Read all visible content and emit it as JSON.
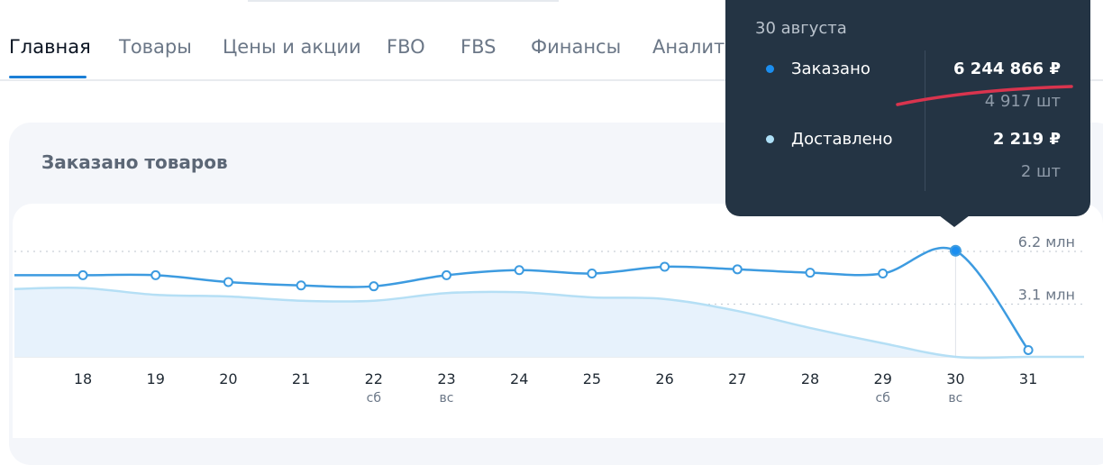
{
  "nav": {
    "tabs": [
      {
        "label": "Главная"
      },
      {
        "label": "Товары"
      },
      {
        "label": "Цены и акции"
      },
      {
        "label": "FBO"
      },
      {
        "label": "FBS"
      },
      {
        "label": "Финансы"
      },
      {
        "label": "Аналити"
      }
    ]
  },
  "card": {
    "title": "Заказано товаров"
  },
  "tooltip": {
    "date": "30 августа",
    "rows": [
      {
        "label": "Заказано",
        "value": "6 244 866 ₽",
        "sub": "4 917 шт",
        "color": "#1b8ef0"
      },
      {
        "label": "Доставлено",
        "value": "2 219 ₽",
        "sub": "2 шт",
        "color": "#aee0f7"
      }
    ]
  },
  "chart_data": {
    "type": "line",
    "categories": [
      "18",
      "19",
      "20",
      "21",
      "22",
      "23",
      "24",
      "25",
      "26",
      "27",
      "28",
      "29",
      "30",
      "31"
    ],
    "weekday_labels": [
      "",
      "",
      "",
      "",
      "сб",
      "вс",
      "",
      "",
      "",
      "",
      "",
      "сб",
      "вс",
      ""
    ],
    "y_tick_labels": [
      "6.2 млн",
      "3.1 млн"
    ],
    "y_ticks": [
      6.2,
      3.1
    ],
    "ylim": [
      0,
      6.2
    ],
    "highlight_index": 12,
    "series": [
      {
        "name": "Заказано",
        "unit": "млн ₽",
        "color": "#3d9be0",
        "values": [
          4.8,
          4.8,
          4.4,
          4.2,
          4.15,
          4.8,
          5.1,
          4.9,
          5.3,
          5.15,
          4.95,
          4.9,
          6.24,
          0.4
        ]
      },
      {
        "name": "Доставлено",
        "unit": "млн ₽",
        "color": "#b5dff5",
        "values": [
          4.05,
          3.65,
          3.55,
          3.3,
          3.3,
          3.75,
          3.8,
          3.5,
          3.4,
          2.7,
          1.7,
          0.8,
          0.002,
          0.0
        ]
      }
    ],
    "grid": true,
    "legend": "none"
  }
}
